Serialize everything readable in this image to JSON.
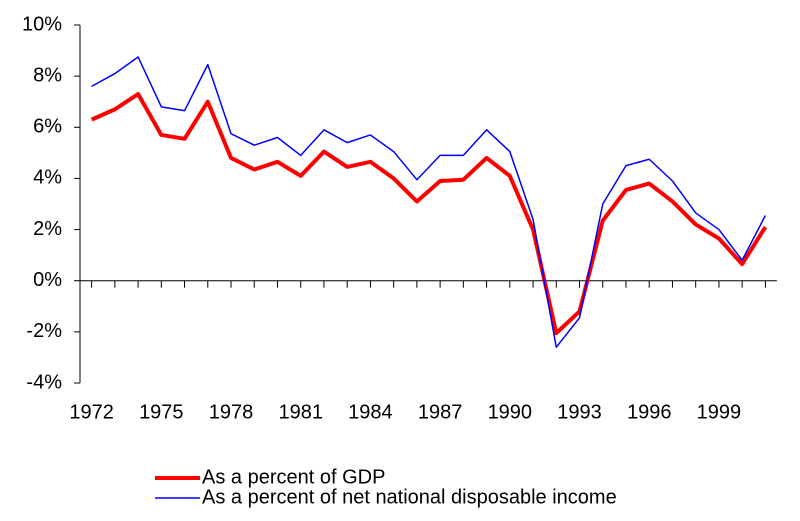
{
  "chart_data": {
    "type": "line",
    "x": [
      1972,
      1973,
      1974,
      1975,
      1976,
      1977,
      1978,
      1979,
      1980,
      1981,
      1982,
      1983,
      1984,
      1985,
      1986,
      1987,
      1988,
      1989,
      1990,
      1991,
      1992,
      1993,
      1994,
      1995,
      1996,
      1997,
      1998,
      1999,
      2000,
      2001
    ],
    "series": [
      {
        "name": "As a percent of GDP",
        "color": "#ff0000",
        "values": [
          6.3,
          6.7,
          7.3,
          5.7,
          5.55,
          7.0,
          4.8,
          4.35,
          4.65,
          4.1,
          5.05,
          4.45,
          4.65,
          4.0,
          3.1,
          3.9,
          3.95,
          4.8,
          4.1,
          2.0,
          -2.05,
          -1.2,
          2.35,
          3.55,
          3.8,
          3.1,
          2.2,
          1.65,
          0.65,
          2.1
        ]
      },
      {
        "name": "As a percent of net national disposable income",
        "color": "#0000ff",
        "values": [
          7.6,
          8.1,
          8.75,
          6.8,
          6.65,
          8.45,
          5.75,
          5.3,
          5.6,
          4.9,
          5.9,
          5.4,
          5.7,
          5.05,
          3.95,
          4.9,
          4.9,
          5.9,
          5.05,
          2.4,
          -2.6,
          -1.45,
          3.0,
          4.5,
          4.75,
          3.9,
          2.65,
          2.0,
          0.8,
          2.55
        ]
      }
    ],
    "xlim": [
      1971.5,
      2001.5
    ],
    "xticks": [
      1972,
      1975,
      1978,
      1981,
      1984,
      1987,
      1990,
      1993,
      1996,
      1999
    ],
    "ylim": [
      -4,
      10
    ],
    "yticks": [
      {
        "value": -4,
        "label": "-4%"
      },
      {
        "value": -2,
        "label": "-2%"
      },
      {
        "value": 0,
        "label": "0%"
      },
      {
        "value": 2,
        "label": "2%"
      },
      {
        "value": 4,
        "label": "4%"
      },
      {
        "value": 6,
        "label": "6%"
      },
      {
        "value": 8,
        "label": "8%"
      },
      {
        "value": 10,
        "label": "10%"
      }
    ]
  }
}
